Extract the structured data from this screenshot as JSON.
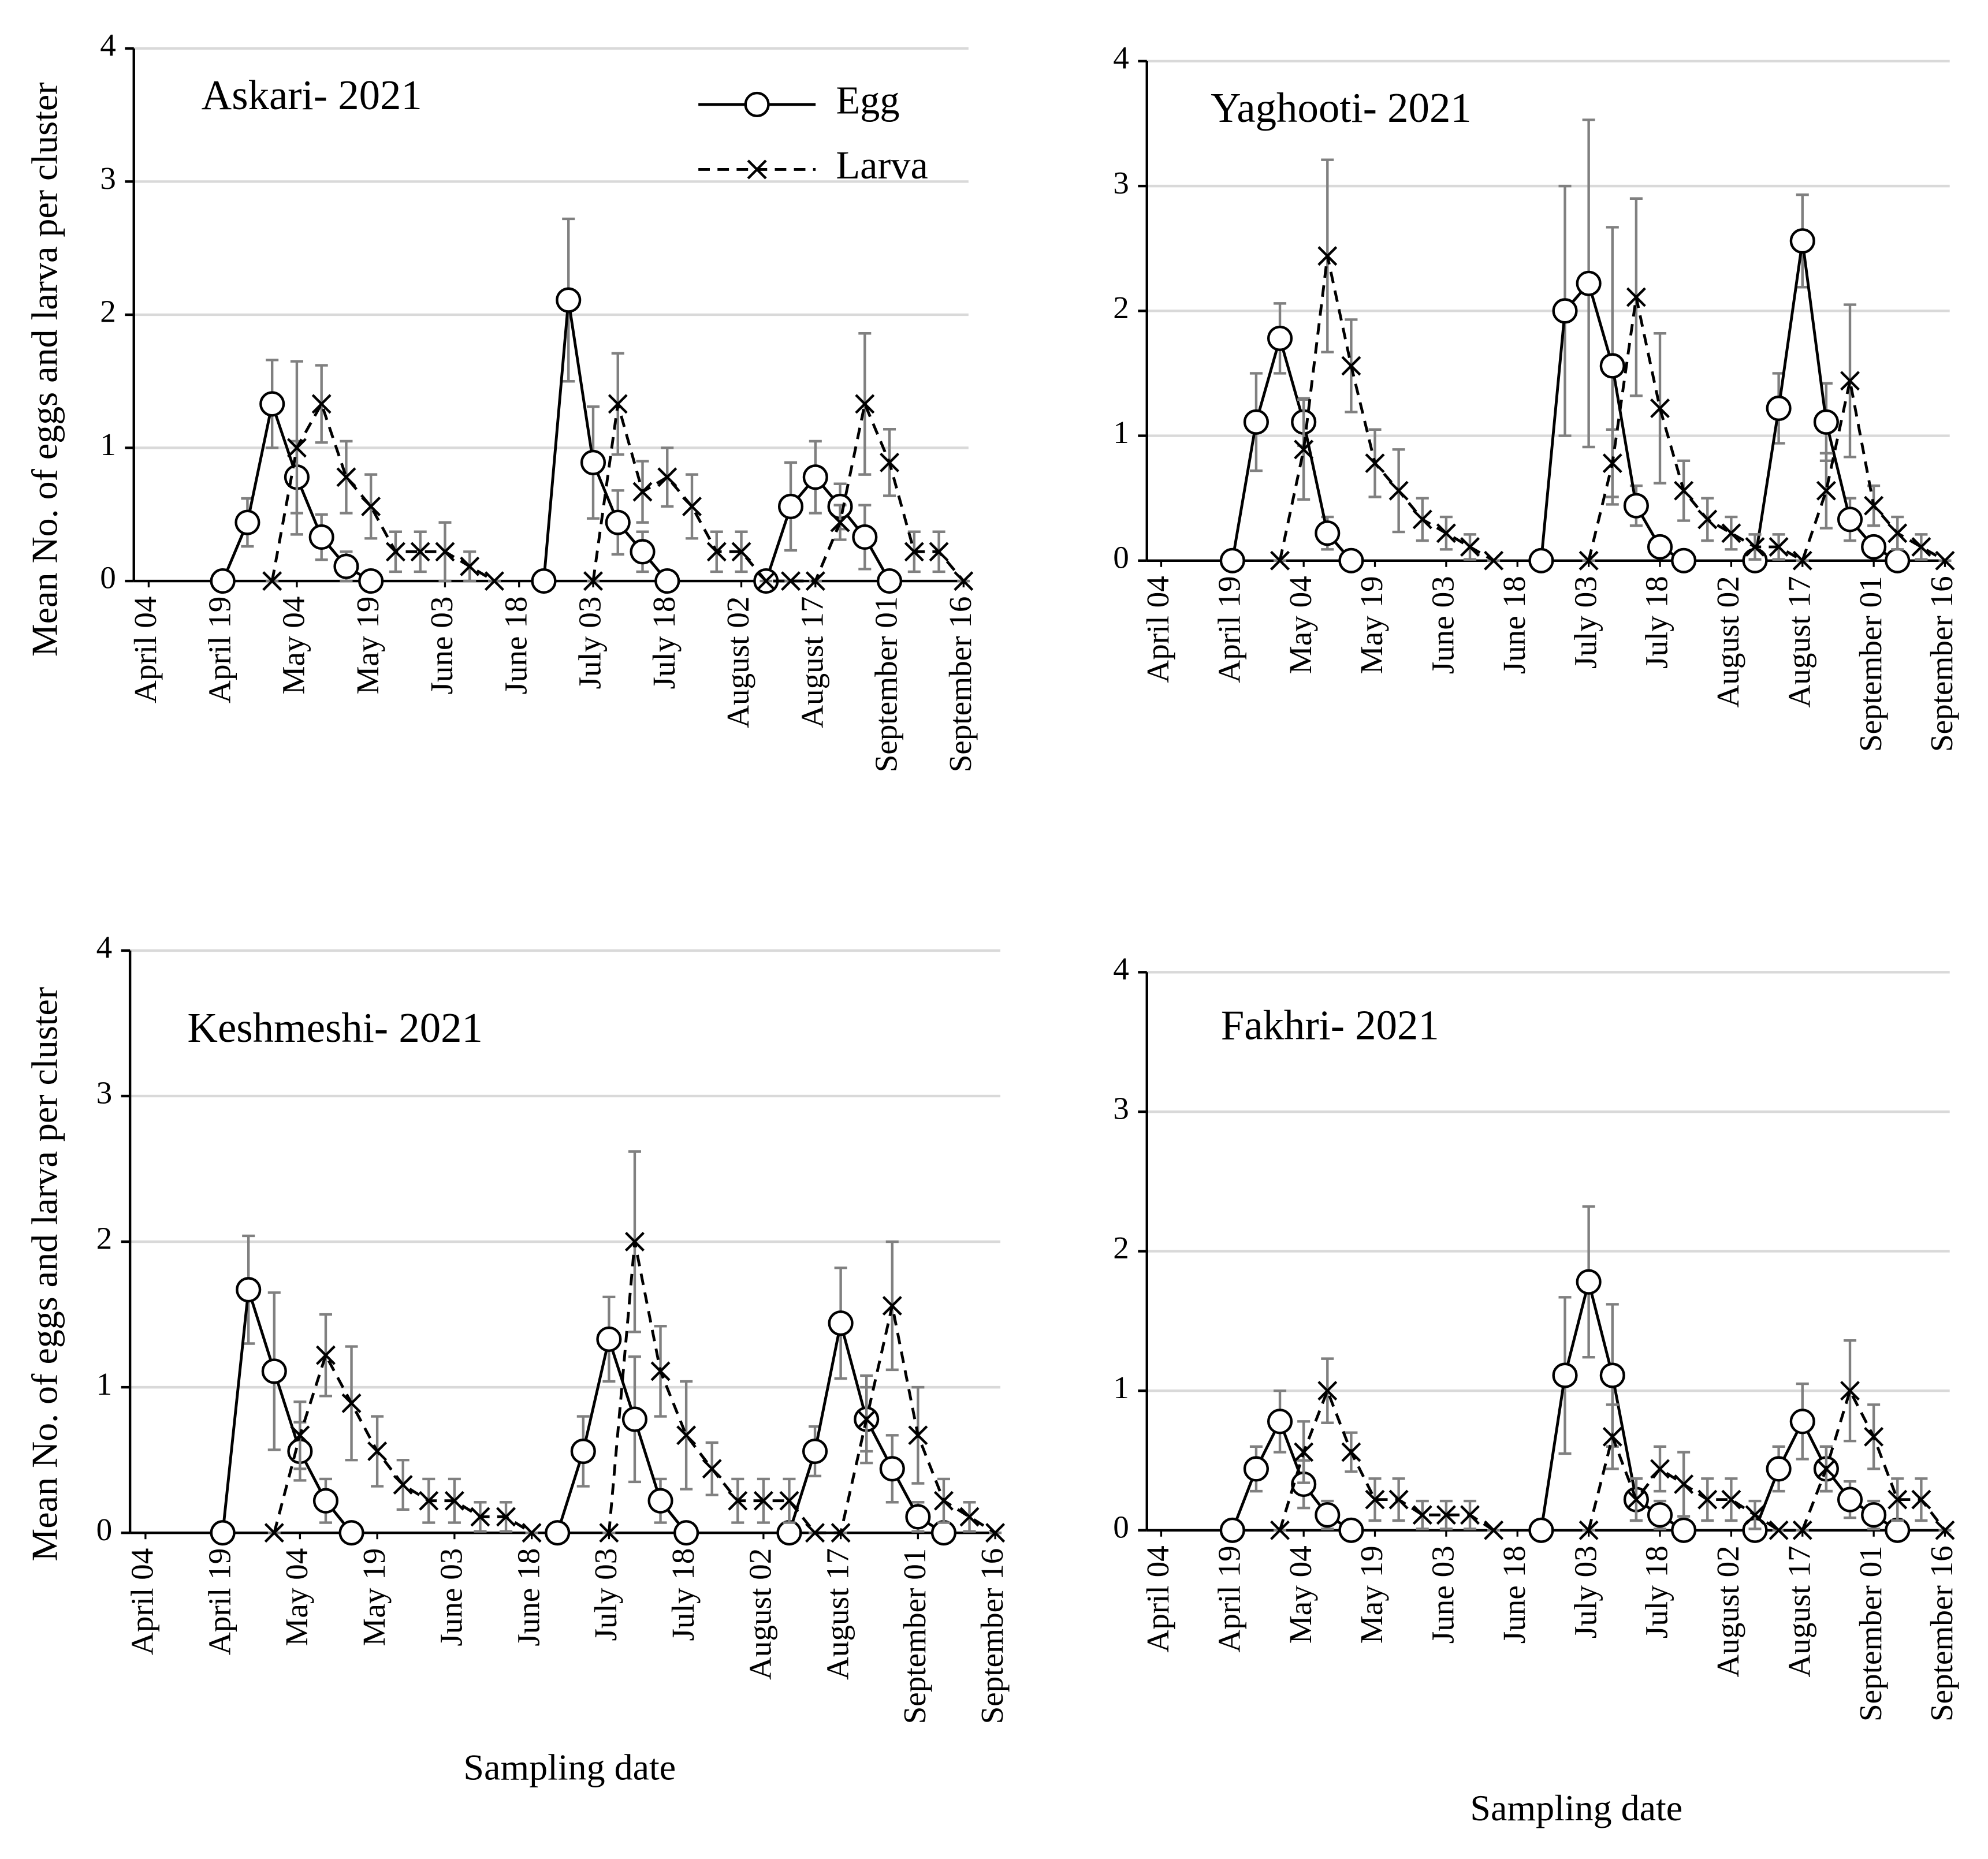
{
  "chart_data": [
    {
      "type": "line",
      "title": "Askari- 2021",
      "ylabel": "Mean No. of eggs and larva per cluster",
      "legend": "upper right",
      "x": [
        15,
        20,
        25,
        30,
        35,
        40,
        45,
        50,
        55,
        60,
        65,
        70,
        75,
        80,
        85,
        90,
        95,
        100,
        105,
        110,
        115,
        120,
        125,
        130,
        135,
        140,
        145,
        150,
        155,
        160,
        165
      ],
      "xlim": [
        -3,
        166
      ],
      "xticks": [
        {
          "value": 0,
          "label": "April 04"
        },
        {
          "value": 15,
          "label": "April 19"
        },
        {
          "value": 30,
          "label": "May 04"
        },
        {
          "value": 45,
          "label": "May 19"
        },
        {
          "value": 60,
          "label": "June 03"
        },
        {
          "value": 75,
          "label": "June 18"
        },
        {
          "value": 90,
          "label": "July 03"
        },
        {
          "value": 105,
          "label": "July 18"
        },
        {
          "value": 120,
          "label": "August 02"
        },
        {
          "value": 135,
          "label": "August 17"
        },
        {
          "value": 150,
          "label": "September 01"
        },
        {
          "value": 165,
          "label": "September 16"
        }
      ],
      "ylim": [
        0,
        4
      ],
      "yticks": [
        0,
        1,
        2,
        3,
        4
      ],
      "grid": true,
      "series": [
        {
          "name": "Egg",
          "color": "#000000",
          "line_style": "solid",
          "marker": "circle",
          "error_color": "#808080",
          "values": [
            0,
            0.44,
            1.33,
            0.78,
            0.33,
            0.11,
            0,
            null,
            null,
            null,
            null,
            null,
            null,
            0,
            2.11,
            0.89,
            0.44,
            0.22,
            0,
            null,
            null,
            null,
            0,
            0.56,
            0.78,
            0.56,
            0.33,
            0,
            null,
            null,
            null
          ],
          "errors": [
            0,
            0.18,
            0.33,
            0.27,
            0.17,
            0.11,
            0,
            null,
            null,
            null,
            null,
            null,
            null,
            0,
            0.61,
            0.42,
            0.24,
            0.15,
            0,
            null,
            null,
            null,
            0,
            0.33,
            0.27,
            0.17,
            0.24,
            0,
            null,
            null,
            null
          ]
        },
        {
          "name": "Larva",
          "color": "#000000",
          "line_style": "dashed",
          "marker": "x",
          "error_color": "#808080",
          "values": [
            null,
            null,
            0,
            1.0,
            1.33,
            0.78,
            0.56,
            0.22,
            0.22,
            0.22,
            0.11,
            0,
            null,
            null,
            null,
            0,
            1.33,
            0.67,
            0.78,
            0.56,
            0.22,
            0.22,
            0,
            0,
            0,
            0.44,
            1.33,
            0.89,
            0.22,
            0.22,
            0
          ],
          "errors": [
            null,
            null,
            0,
            0.65,
            0.29,
            0.27,
            0.24,
            0.15,
            0.15,
            0.22,
            0.11,
            0,
            null,
            null,
            null,
            0,
            0.38,
            0.23,
            0.22,
            0.24,
            0.15,
            0.15,
            0,
            0,
            0,
            0.13,
            0.53,
            0.25,
            0.15,
            0.15,
            0
          ]
        }
      ]
    },
    {
      "type": "line",
      "title": "Yaghooti- 2021",
      "x": [
        15,
        20,
        25,
        30,
        35,
        40,
        45,
        50,
        55,
        60,
        65,
        70,
        75,
        80,
        85,
        90,
        95,
        100,
        105,
        110,
        115,
        120,
        125,
        130,
        135,
        140,
        145,
        150,
        155,
        160,
        165
      ],
      "xlim": [
        -3,
        166
      ],
      "xticks": [
        {
          "value": 0,
          "label": "April 04"
        },
        {
          "value": 15,
          "label": "April 19"
        },
        {
          "value": 30,
          "label": "May 04"
        },
        {
          "value": 45,
          "label": "May 19"
        },
        {
          "value": 60,
          "label": "June 03"
        },
        {
          "value": 75,
          "label": "June 18"
        },
        {
          "value": 90,
          "label": "July 03"
        },
        {
          "value": 105,
          "label": "July 18"
        },
        {
          "value": 120,
          "label": "August 02"
        },
        {
          "value": 135,
          "label": "August 17"
        },
        {
          "value": 150,
          "label": "September 01"
        },
        {
          "value": 165,
          "label": "September 16"
        }
      ],
      "ylim": [
        0,
        4
      ],
      "yticks": [
        0,
        1,
        2,
        3,
        4
      ],
      "grid": true,
      "series": [
        {
          "color": "#000000",
          "line_style": "solid",
          "marker": "circle",
          "error_color": "#808080",
          "values": [
            0,
            1.11,
            1.78,
            1.11,
            0.22,
            0,
            null,
            null,
            null,
            null,
            null,
            null,
            null,
            0,
            2.0,
            2.22,
            1.56,
            0.44,
            0.11,
            0,
            null,
            null,
            0,
            1.22,
            2.56,
            1.11,
            0.33,
            0.11,
            0,
            null,
            null
          ],
          "errors": [
            0,
            0.39,
            0.28,
            0.19,
            0.13,
            0,
            null,
            null,
            null,
            null,
            null,
            null,
            null,
            0,
            1.0,
            1.31,
            1.11,
            0.16,
            0.08,
            0,
            null,
            null,
            0,
            0.28,
            0.37,
            0.31,
            0.17,
            0.08,
            0,
            null,
            null
          ]
        },
        {
          "color": "#000000",
          "line_style": "dashed",
          "marker": "x",
          "error_color": "#808080",
          "values": [
            null,
            null,
            0,
            0.89,
            2.44,
            1.56,
            0.78,
            0.56,
            0.33,
            0.22,
            0.11,
            0,
            null,
            null,
            null,
            0,
            0.78,
            2.11,
            1.22,
            0.56,
            0.33,
            0.22,
            0.11,
            0.11,
            0,
            0.56,
            1.44,
            0.44,
            0.22,
            0.11,
            0
          ],
          "errors": [
            null,
            null,
            0,
            0.4,
            0.77,
            0.37,
            0.27,
            0.33,
            0.17,
            0.13,
            0.1,
            0,
            null,
            null,
            null,
            0,
            0.27,
            0.79,
            0.6,
            0.24,
            0.17,
            0.13,
            0.1,
            0.1,
            0,
            0.3,
            0.61,
            0.16,
            0.13,
            0.1,
            0
          ]
        }
      ]
    },
    {
      "type": "line",
      "title": "Keshmeshi- 2021",
      "ylabel": "Mean No. of eggs and larva per cluster",
      "xlabel": "Sampling date",
      "x": [
        15,
        20,
        25,
        30,
        35,
        40,
        45,
        50,
        55,
        60,
        65,
        70,
        75,
        80,
        85,
        90,
        95,
        100,
        105,
        110,
        115,
        120,
        125,
        130,
        135,
        140,
        145,
        150,
        155,
        160,
        165
      ],
      "xlim": [
        -3,
        166
      ],
      "xticks": [
        {
          "value": 0,
          "label": "April 04"
        },
        {
          "value": 15,
          "label": "April 19"
        },
        {
          "value": 30,
          "label": "May 04"
        },
        {
          "value": 45,
          "label": "May 19"
        },
        {
          "value": 60,
          "label": "June 03"
        },
        {
          "value": 75,
          "label": "June 18"
        },
        {
          "value": 90,
          "label": "July 03"
        },
        {
          "value": 105,
          "label": "July 18"
        },
        {
          "value": 120,
          "label": "August 02"
        },
        {
          "value": 135,
          "label": "August 17"
        },
        {
          "value": 150,
          "label": "September 01"
        },
        {
          "value": 165,
          "label": "September 16"
        }
      ],
      "ylim": [
        0,
        4
      ],
      "yticks": [
        0,
        1,
        2,
        3,
        4
      ],
      "grid": true,
      "series": [
        {
          "color": "#000000",
          "line_style": "solid",
          "marker": "circle",
          "error_color": "#808080",
          "values": [
            0,
            1.67,
            1.11,
            0.56,
            0.22,
            0,
            null,
            null,
            null,
            null,
            null,
            null,
            null,
            0,
            0.56,
            1.33,
            0.78,
            0.22,
            0,
            null,
            null,
            null,
            0,
            0.56,
            1.44,
            0.78,
            0.44,
            0.11,
            0,
            null,
            null
          ],
          "errors": [
            0,
            0.37,
            0.54,
            0.2,
            0.15,
            0,
            null,
            null,
            null,
            null,
            null,
            null,
            null,
            0,
            0.24,
            0.29,
            0.43,
            0.15,
            0,
            null,
            null,
            null,
            0,
            0.17,
            0.38,
            0.3,
            0.23,
            0.1,
            0,
            null,
            null
          ]
        },
        {
          "color": "#000000",
          "line_style": "dashed",
          "marker": "x",
          "error_color": "#808080",
          "values": [
            null,
            null,
            0,
            0.67,
            1.22,
            0.89,
            0.56,
            0.33,
            0.22,
            0.22,
            0.11,
            0.11,
            0,
            null,
            null,
            0,
            2.0,
            1.11,
            0.67,
            0.44,
            0.22,
            0.22,
            0.22,
            0,
            0,
            0.78,
            1.56,
            0.67,
            0.22,
            0.11,
            0
          ],
          "errors": [
            null,
            null,
            0,
            0.23,
            0.28,
            0.39,
            0.24,
            0.17,
            0.15,
            0.15,
            0.1,
            0.1,
            0,
            null,
            null,
            0,
            0.62,
            0.31,
            0.37,
            0.18,
            0.15,
            0.15,
            0.15,
            0,
            0,
            0.22,
            0.44,
            0.33,
            0.15,
            0.1,
            0
          ]
        }
      ]
    },
    {
      "type": "line",
      "title": "Fakhri- 2021",
      "xlabel": "Sampling date",
      "x": [
        15,
        20,
        25,
        30,
        35,
        40,
        45,
        50,
        55,
        60,
        65,
        70,
        75,
        80,
        85,
        90,
        95,
        100,
        105,
        110,
        115,
        120,
        125,
        130,
        135,
        140,
        145,
        150,
        155,
        160,
        165
      ],
      "xlim": [
        -3,
        166
      ],
      "xticks": [
        {
          "value": 0,
          "label": "April 04"
        },
        {
          "value": 15,
          "label": "April 19"
        },
        {
          "value": 30,
          "label": "May 04"
        },
        {
          "value": 45,
          "label": "May 19"
        },
        {
          "value": 60,
          "label": "June 03"
        },
        {
          "value": 75,
          "label": "June 18"
        },
        {
          "value": 90,
          "label": "July 03"
        },
        {
          "value": 105,
          "label": "July 18"
        },
        {
          "value": 120,
          "label": "August 02"
        },
        {
          "value": 135,
          "label": "August 17"
        },
        {
          "value": 150,
          "label": "September 01"
        },
        {
          "value": 165,
          "label": "September 16"
        }
      ],
      "ylim": [
        0,
        4
      ],
      "yticks": [
        0,
        1,
        2,
        3,
        4
      ],
      "grid": true,
      "series": [
        {
          "color": "#000000",
          "line_style": "solid",
          "marker": "circle",
          "error_color": "#808080",
          "values": [
            0,
            0.44,
            0.78,
            0.33,
            0.11,
            0,
            null,
            null,
            null,
            null,
            null,
            null,
            null,
            0,
            1.11,
            1.78,
            1.11,
            0.22,
            0.11,
            0,
            null,
            null,
            0,
            0.44,
            0.78,
            0.44,
            0.22,
            0.11,
            0,
            null,
            null
          ],
          "errors": [
            0,
            0.16,
            0.22,
            0.17,
            0.1,
            0,
            null,
            null,
            null,
            null,
            null,
            null,
            null,
            0,
            0.56,
            0.54,
            0.51,
            0.15,
            0.1,
            0,
            null,
            null,
            0,
            0.16,
            0.27,
            0.16,
            0.13,
            0.1,
            0,
            null,
            null
          ]
        },
        {
          "color": "#000000",
          "line_style": "dashed",
          "marker": "x",
          "error_color": "#808080",
          "values": [
            null,
            null,
            0,
            0.56,
            1.0,
            0.56,
            0.22,
            0.22,
            0.11,
            0.11,
            0.11,
            0,
            null,
            null,
            null,
            0,
            0.67,
            0.22,
            0.44,
            0.33,
            0.22,
            0.22,
            0.11,
            0,
            0,
            0.44,
            1.0,
            0.67,
            0.22,
            0.22,
            0
          ],
          "errors": [
            null,
            null,
            0,
            0.22,
            0.23,
            0.14,
            0.15,
            0.15,
            0.1,
            0.1,
            0.1,
            0,
            null,
            null,
            null,
            0,
            0.23,
            0.15,
            0.16,
            0.23,
            0.15,
            0.15,
            0.1,
            0,
            0,
            0.16,
            0.36,
            0.23,
            0.15,
            0.15,
            0
          ]
        }
      ]
    }
  ]
}
